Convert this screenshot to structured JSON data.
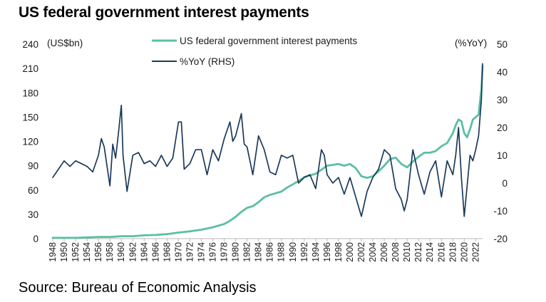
{
  "title": "US federal government interest payments",
  "source": "Source: Bureau of Economic Analysis",
  "chart_data": {
    "type": "line",
    "title": "US federal government interest payments",
    "left_axis": {
      "unit": "(US$bn)",
      "ylim": [
        0,
        240
      ],
      "ticks": [
        0,
        30,
        60,
        90,
        120,
        150,
        180,
        210,
        240
      ]
    },
    "right_axis": {
      "unit": "(%YoY)",
      "ylim": [
        -20,
        50
      ],
      "ticks": [
        -20,
        -10,
        0,
        10,
        20,
        30,
        40,
        50
      ]
    },
    "x_ticks": [
      1948,
      1950,
      1952,
      1954,
      1956,
      1958,
      1960,
      1962,
      1964,
      1966,
      1968,
      1970,
      1972,
      1974,
      1976,
      1978,
      1980,
      1982,
      1984,
      1986,
      1988,
      1990,
      1992,
      1994,
      1996,
      1998,
      2000,
      2002,
      2004,
      2006,
      2008,
      2010,
      2012,
      2014,
      2016,
      2018,
      2020,
      2022
    ],
    "xlim": [
      1948,
      2023.2
    ],
    "grid": false,
    "legend_placement": "top-center",
    "series": [
      {
        "name": "US federal government interest payments",
        "axis": "left",
        "color": "#5bbfa4",
        "x": [
          1948,
          1950,
          1952,
          1954,
          1956,
          1958,
          1960,
          1962,
          1964,
          1966,
          1968,
          1970,
          1972,
          1974,
          1976,
          1978,
          1979,
          1980,
          1981,
          1982,
          1983,
          1984,
          1985,
          1986,
          1987,
          1988,
          1989,
          1990,
          1991,
          1992,
          1993,
          1994,
          1995,
          1996,
          1997,
          1998,
          1999,
          2000,
          2001,
          2002,
          2003,
          2004,
          2005,
          2006,
          2007,
          2008,
          2009,
          2010,
          2011,
          2012,
          2013,
          2014,
          2015,
          2016,
          2017,
          2018,
          2018.5,
          2019,
          2019.5,
          2020,
          2020.5,
          2021,
          2021.5,
          2022,
          2022.5,
          2023,
          2023.2
        ],
        "values": [
          1,
          1,
          1,
          1.5,
          2,
          2,
          3,
          3,
          4,
          4.5,
          5.5,
          7.5,
          9,
          11,
          14,
          18,
          22,
          27,
          33,
          38,
          40,
          45,
          51,
          54,
          56,
          58,
          63,
          67,
          71,
          76,
          78,
          80,
          85,
          90,
          91,
          92,
          90,
          92,
          87,
          77,
          75,
          77,
          83,
          90,
          98,
          100,
          92,
          88,
          95,
          101,
          106,
          106,
          108,
          114,
          118,
          130,
          140,
          147,
          145,
          130,
          125,
          135,
          147,
          150,
          153,
          185,
          213
        ]
      },
      {
        "name": "%YoY (RHS)",
        "axis": "right",
        "color": "#1b3a5c",
        "x": [
          1948,
          1949,
          1950,
          1950.5,
          1951,
          1952,
          1953,
          1954,
          1955,
          1956,
          1956.5,
          1957,
          1958,
          1958.5,
          1959,
          1959.5,
          1960,
          1960.3,
          1961,
          1962,
          1963,
          1964,
          1965,
          1966,
          1967,
          1968,
          1969,
          1970,
          1970.5,
          1971,
          1972,
          1973,
          1974,
          1975,
          1976,
          1977,
          1978,
          1979,
          1979.5,
          1980,
          1981,
          1981.5,
          1982,
          1983,
          1984,
          1985,
          1986,
          1987,
          1988,
          1989,
          1990,
          1991,
          1992,
          1993,
          1994,
          1995,
          1995.5,
          1996,
          1997,
          1998,
          1999,
          2000,
          2001,
          2002,
          2003,
          2004,
          2005,
          2006,
          2007,
          2008,
          2009,
          2009.5,
          2010,
          2011,
          2012,
          2013,
          2014,
          2015,
          2016,
          2017,
          2018,
          2018.5,
          2019,
          2019.5,
          2020,
          2021,
          2021.5,
          2022,
          2022.5,
          2023,
          2023.2
        ],
        "values": [
          2,
          5,
          8,
          7,
          6,
          8,
          7,
          6,
          4,
          10,
          16,
          13,
          -1,
          14,
          9,
          18,
          28,
          10,
          -3,
          10,
          11,
          7,
          8,
          6,
          10,
          6,
          9,
          22,
          22,
          5,
          7,
          12,
          12,
          3,
          12,
          8,
          16,
          22,
          15,
          17,
          25,
          14,
          13,
          3,
          17,
          12,
          4,
          3,
          10,
          9,
          10,
          0,
          2,
          3,
          -2,
          12,
          10,
          3,
          0,
          2,
          -4,
          2,
          -5,
          -12,
          -3,
          2,
          5,
          12,
          10,
          -2,
          -6,
          -10,
          -6,
          12,
          3,
          -4,
          4,
          8,
          -5,
          8,
          3,
          10,
          20,
          2,
          -12,
          10,
          8,
          12,
          17,
          30,
          43
        ]
      }
    ]
  }
}
